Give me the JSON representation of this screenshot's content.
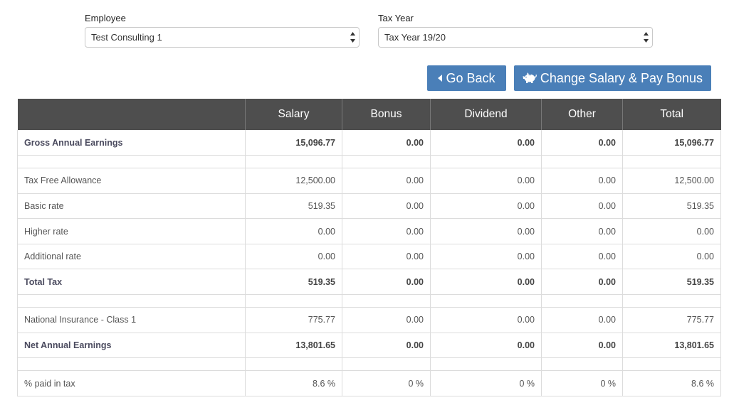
{
  "employee": {
    "label": "Employee",
    "value": "Test Consulting 1"
  },
  "tax_year": {
    "label": "Tax Year",
    "value": "Tax Year 19/20"
  },
  "buttons": {
    "go_back": "Go Back",
    "change_salary": "Change Salary & Pay Bonus"
  },
  "table": {
    "headers": [
      "",
      "Salary",
      "Bonus",
      "Dividend",
      "Other",
      "Total"
    ],
    "rows": [
      {
        "label": "Gross Annual Earnings",
        "bold": true,
        "values": [
          "15,096.77",
          "0.00",
          "0.00",
          "0.00",
          "15,096.77"
        ]
      },
      {
        "spacer": true
      },
      {
        "label": "Tax Free Allowance",
        "values": [
          "12,500.00",
          "0.00",
          "0.00",
          "0.00",
          "12,500.00"
        ]
      },
      {
        "label": "Basic rate",
        "values": [
          "519.35",
          "0.00",
          "0.00",
          "0.00",
          "519.35"
        ]
      },
      {
        "label": "Higher rate",
        "values": [
          "0.00",
          "0.00",
          "0.00",
          "0.00",
          "0.00"
        ]
      },
      {
        "label": "Additional rate",
        "values": [
          "0.00",
          "0.00",
          "0.00",
          "0.00",
          "0.00"
        ]
      },
      {
        "label": "Total Tax",
        "bold": true,
        "values": [
          "519.35",
          "0.00",
          "0.00",
          "0.00",
          "519.35"
        ]
      },
      {
        "spacer": true
      },
      {
        "label": "National Insurance - Class 1",
        "values": [
          "775.77",
          "0.00",
          "0.00",
          "0.00",
          "775.77"
        ]
      },
      {
        "label": "Net Annual Earnings",
        "bold": true,
        "values": [
          "13,801.65",
          "0.00",
          "0.00",
          "0.00",
          "13,801.65"
        ]
      },
      {
        "spacer": true
      },
      {
        "label": "% paid in tax",
        "values": [
          "8.6 %",
          "0 %",
          "0 %",
          "0 %",
          "8.6 %"
        ]
      }
    ]
  },
  "colors": {
    "button_bg": "#4a7fb8",
    "header_bg": "#4e4e4e"
  },
  "icons": {
    "go_back": "caret-left-icon",
    "change_salary": "piggy-bank-icon",
    "select": "select-arrows-icon"
  }
}
